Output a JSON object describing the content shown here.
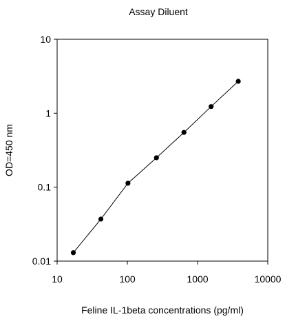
{
  "chart_data": {
    "type": "scatter",
    "title": "Assay Diluent",
    "xlabel": "Feline IL-1beta concentrations (pg/ml)",
    "ylabel": "OD=450 nm",
    "x_scale": "log",
    "y_scale": "log",
    "xlim": [
      10,
      10000
    ],
    "ylim": [
      0.01,
      10
    ],
    "x_ticks": [
      10,
      100,
      1000,
      10000
    ],
    "x_tick_labels": [
      "10",
      "100",
      "1000",
      "10000"
    ],
    "y_ticks": [
      0.01,
      0.1,
      1,
      10
    ],
    "y_tick_labels": [
      "0.01",
      "0.1",
      "1",
      "10"
    ],
    "grid": false,
    "legend": "none",
    "series": [
      {
        "color": "#000000",
        "x": [
          17,
          42,
          102,
          260,
          640,
          1560,
          3800
        ],
        "y": [
          0.013,
          0.037,
          0.113,
          0.25,
          0.55,
          1.23,
          2.7
        ]
      }
    ]
  }
}
